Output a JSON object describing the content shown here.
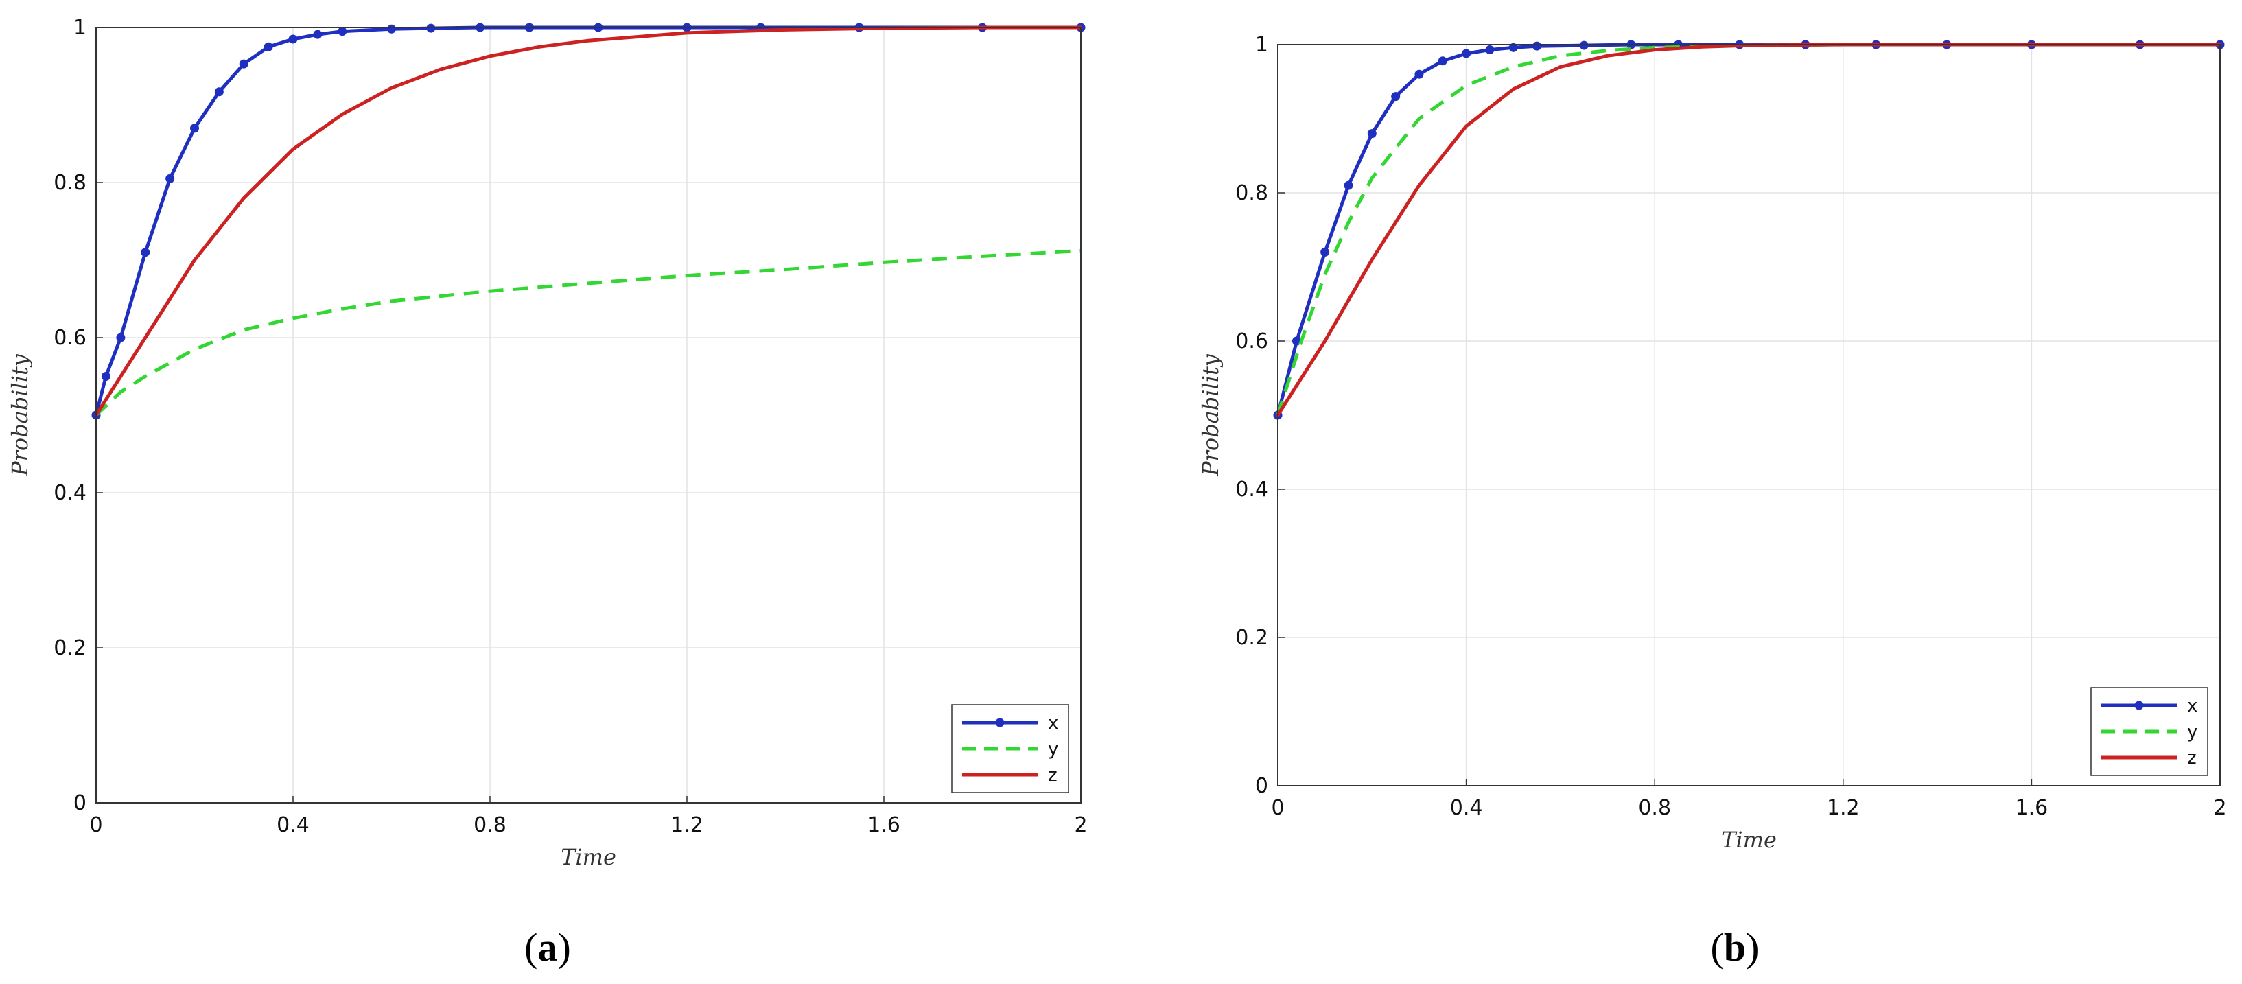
{
  "chart_data": [
    {
      "type": "line",
      "panel_caption": {
        "open": "(",
        "letter": "a",
        "close": ")"
      },
      "xlabel": "Time",
      "ylabel": "Probability",
      "xlim": [
        0,
        2
      ],
      "ylim": [
        0,
        1
      ],
      "xticks": [
        "0",
        "0.4",
        "0.8",
        "1.2",
        "1.6",
        "2"
      ],
      "yticks": [
        "0",
        "0.2",
        "0.4",
        "0.6",
        "0.8",
        "1"
      ],
      "grid": true,
      "legend_position": "bottom-right",
      "series": [
        {
          "name": "x",
          "color": "#1f2fbf",
          "style": "solid-marker",
          "x": [
            0,
            0.02,
            0.05,
            0.1,
            0.15,
            0.2,
            0.25,
            0.3,
            0.35,
            0.4,
            0.45,
            0.5,
            0.6,
            0.68,
            0.78,
            0.88,
            1.02,
            1.2,
            1.35,
            1.55,
            1.8,
            2.0
          ],
          "y": [
            0.5,
            0.55,
            0.6,
            0.71,
            0.805,
            0.87,
            0.917,
            0.953,
            0.975,
            0.985,
            0.991,
            0.995,
            0.998,
            0.999,
            1.0,
            1.0,
            1.0,
            1.0,
            1.0,
            1.0,
            1.0,
            1.0
          ]
        },
        {
          "name": "y",
          "color": "#33d633",
          "style": "dashed",
          "x": [
            0,
            0.05,
            0.1,
            0.2,
            0.3,
            0.4,
            0.5,
            0.6,
            0.8,
            1.0,
            1.2,
            1.4,
            1.6,
            1.8,
            2.0
          ],
          "y": [
            0.5,
            0.53,
            0.55,
            0.585,
            0.61,
            0.625,
            0.637,
            0.647,
            0.66,
            0.67,
            0.68,
            0.688,
            0.697,
            0.705,
            0.712
          ]
        },
        {
          "name": "z",
          "color": "#cc2222",
          "style": "solid",
          "x": [
            0,
            0.1,
            0.2,
            0.3,
            0.4,
            0.5,
            0.6,
            0.7,
            0.8,
            0.9,
            1.0,
            1.2,
            1.4,
            1.6,
            1.8,
            2.0
          ],
          "y": [
            0.5,
            0.6,
            0.7,
            0.78,
            0.843,
            0.888,
            0.922,
            0.946,
            0.963,
            0.975,
            0.983,
            0.993,
            0.997,
            0.999,
            1.0,
            1.0
          ]
        }
      ]
    },
    {
      "type": "line",
      "panel_caption": {
        "open": "(",
        "letter": "b",
        "close": ")"
      },
      "xlabel": "Time",
      "ylabel": "Probability",
      "xlim": [
        0,
        2
      ],
      "ylim": [
        0,
        1
      ],
      "xticks": [
        "0",
        "0.4",
        "0.8",
        "1.2",
        "1.6",
        "2"
      ],
      "yticks": [
        "0",
        "0.2",
        "0.4",
        "0.6",
        "0.8",
        "1"
      ],
      "grid": true,
      "legend_position": "bottom-right",
      "series": [
        {
          "name": "x",
          "color": "#1f2fbf",
          "style": "solid-marker",
          "x": [
            0,
            0.04,
            0.1,
            0.15,
            0.2,
            0.25,
            0.3,
            0.35,
            0.4,
            0.45,
            0.5,
            0.55,
            0.65,
            0.75,
            0.85,
            0.98,
            1.12,
            1.27,
            1.42,
            1.6,
            1.83,
            2.0
          ],
          "y": [
            0.5,
            0.6,
            0.72,
            0.81,
            0.88,
            0.93,
            0.96,
            0.978,
            0.988,
            0.993,
            0.996,
            0.998,
            0.999,
            1.0,
            1.0,
            1.0,
            1.0,
            1.0,
            1.0,
            1.0,
            1.0,
            1.0
          ]
        },
        {
          "name": "y",
          "color": "#33d633",
          "style": "dashed",
          "x": [
            0,
            0.05,
            0.1,
            0.15,
            0.2,
            0.3,
            0.4,
            0.5,
            0.6,
            0.7,
            0.8,
            1.0,
            1.2,
            1.6,
            2.0
          ],
          "y": [
            0.5,
            0.6,
            0.69,
            0.76,
            0.82,
            0.9,
            0.945,
            0.97,
            0.985,
            0.992,
            0.996,
            0.999,
            1.0,
            1.0,
            1.0
          ]
        },
        {
          "name": "z",
          "color": "#cc2222",
          "style": "solid",
          "x": [
            0,
            0.1,
            0.2,
            0.3,
            0.4,
            0.5,
            0.6,
            0.7,
            0.8,
            0.9,
            1.0,
            1.2,
            1.4,
            1.6,
            2.0
          ],
          "y": [
            0.5,
            0.6,
            0.71,
            0.81,
            0.89,
            0.94,
            0.97,
            0.985,
            0.993,
            0.997,
            0.999,
            1.0,
            1.0,
            1.0,
            1.0
          ]
        }
      ]
    }
  ]
}
